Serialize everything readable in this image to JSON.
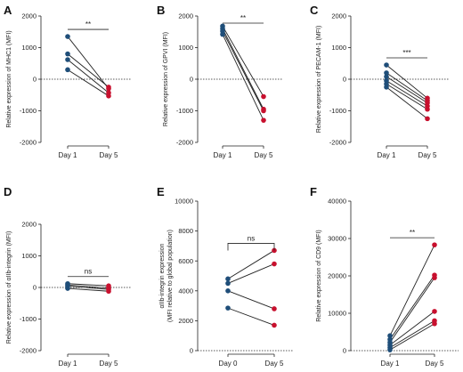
{
  "colors": {
    "day1": "#1f4e79",
    "later": "#c8102e",
    "axis": "#222222",
    "line": "#222222"
  },
  "chart_data": [
    {
      "type": "scatter",
      "panel": "A",
      "ylabel": "Relative expression of MHC1 (MFI)",
      "ylim": [
        -2000,
        2000
      ],
      "yticks": [
        -2000,
        -1000,
        0,
        1000,
        2000
      ],
      "categories": [
        "Day 1",
        "Day 5"
      ],
      "pairs": [
        [
          1350,
          -300
        ],
        [
          800,
          -250
        ],
        [
          620,
          -430
        ],
        [
          300,
          -530
        ]
      ],
      "significance": "**",
      "zero_line": "dotted"
    },
    {
      "type": "scatter",
      "panel": "B",
      "ylabel": "Relative expression of GPVI (MFI)",
      "ylim": [
        -2000,
        2000
      ],
      "yticks": [
        -2000,
        -1000,
        0,
        1000,
        2000
      ],
      "categories": [
        "Day 1",
        "Day 5"
      ],
      "pairs": [
        [
          1680,
          -550
        ],
        [
          1600,
          -950
        ],
        [
          1520,
          -1000
        ],
        [
          1420,
          -1300
        ]
      ],
      "significance": "**",
      "zero_line": "dotted"
    },
    {
      "type": "scatter",
      "panel": "C",
      "ylabel": "Relative expression of PECAM-1 (MFI)",
      "ylim": [
        -2000,
        2000
      ],
      "yticks": [
        -2000,
        -1000,
        0,
        1000,
        2000
      ],
      "categories": [
        "Day 1",
        "Day 5"
      ],
      "pairs": [
        [
          450,
          -600
        ],
        [
          200,
          -680
        ],
        [
          80,
          -750
        ],
        [
          -50,
          -850
        ],
        [
          -150,
          -950
        ],
        [
          -250,
          -1250
        ]
      ],
      "significance": "***",
      "zero_line": "dotted"
    },
    {
      "type": "scatter",
      "panel": "D",
      "ylabel": "Relative expression of αIIb-integrin (MFI)",
      "ylim": [
        -2000,
        2000
      ],
      "yticks": [
        -2000,
        -1000,
        0,
        1000,
        2000
      ],
      "categories": [
        "Day 1",
        "Day 5"
      ],
      "pairs": [
        [
          120,
          50
        ],
        [
          80,
          -20
        ],
        [
          40,
          -60
        ],
        [
          -30,
          -120
        ]
      ],
      "significance": "ns",
      "zero_line": "dotted"
    },
    {
      "type": "scatter",
      "panel": "E",
      "ylabel": "αIIb-integrin expression",
      "ylabel2": "(MFI relative to global population)",
      "ylim": [
        0,
        10000
      ],
      "yticks": [
        0,
        2000,
        4000,
        6000,
        8000,
        10000
      ],
      "categories": [
        "Day 0",
        "Day 5"
      ],
      "pairs": [
        [
          4800,
          6700
        ],
        [
          4500,
          5800
        ],
        [
          4000,
          2800
        ],
        [
          2850,
          1700
        ]
      ],
      "significance": "ns",
      "zero_line": "dotted"
    },
    {
      "type": "scatter",
      "panel": "F",
      "ylabel": "Relative expression of CD9 (MFI)",
      "ylim": [
        0,
        40000
      ],
      "yticks": [
        0,
        10000,
        20000,
        30000,
        40000
      ],
      "categories": [
        "Day 1",
        "Day 5"
      ],
      "pairs": [
        [
          4000,
          28300
        ],
        [
          3000,
          20200
        ],
        [
          2200,
          19500
        ],
        [
          1500,
          10500
        ],
        [
          800,
          8000
        ],
        [
          200,
          7200
        ]
      ],
      "significance": "**",
      "zero_line": "dotted"
    }
  ]
}
